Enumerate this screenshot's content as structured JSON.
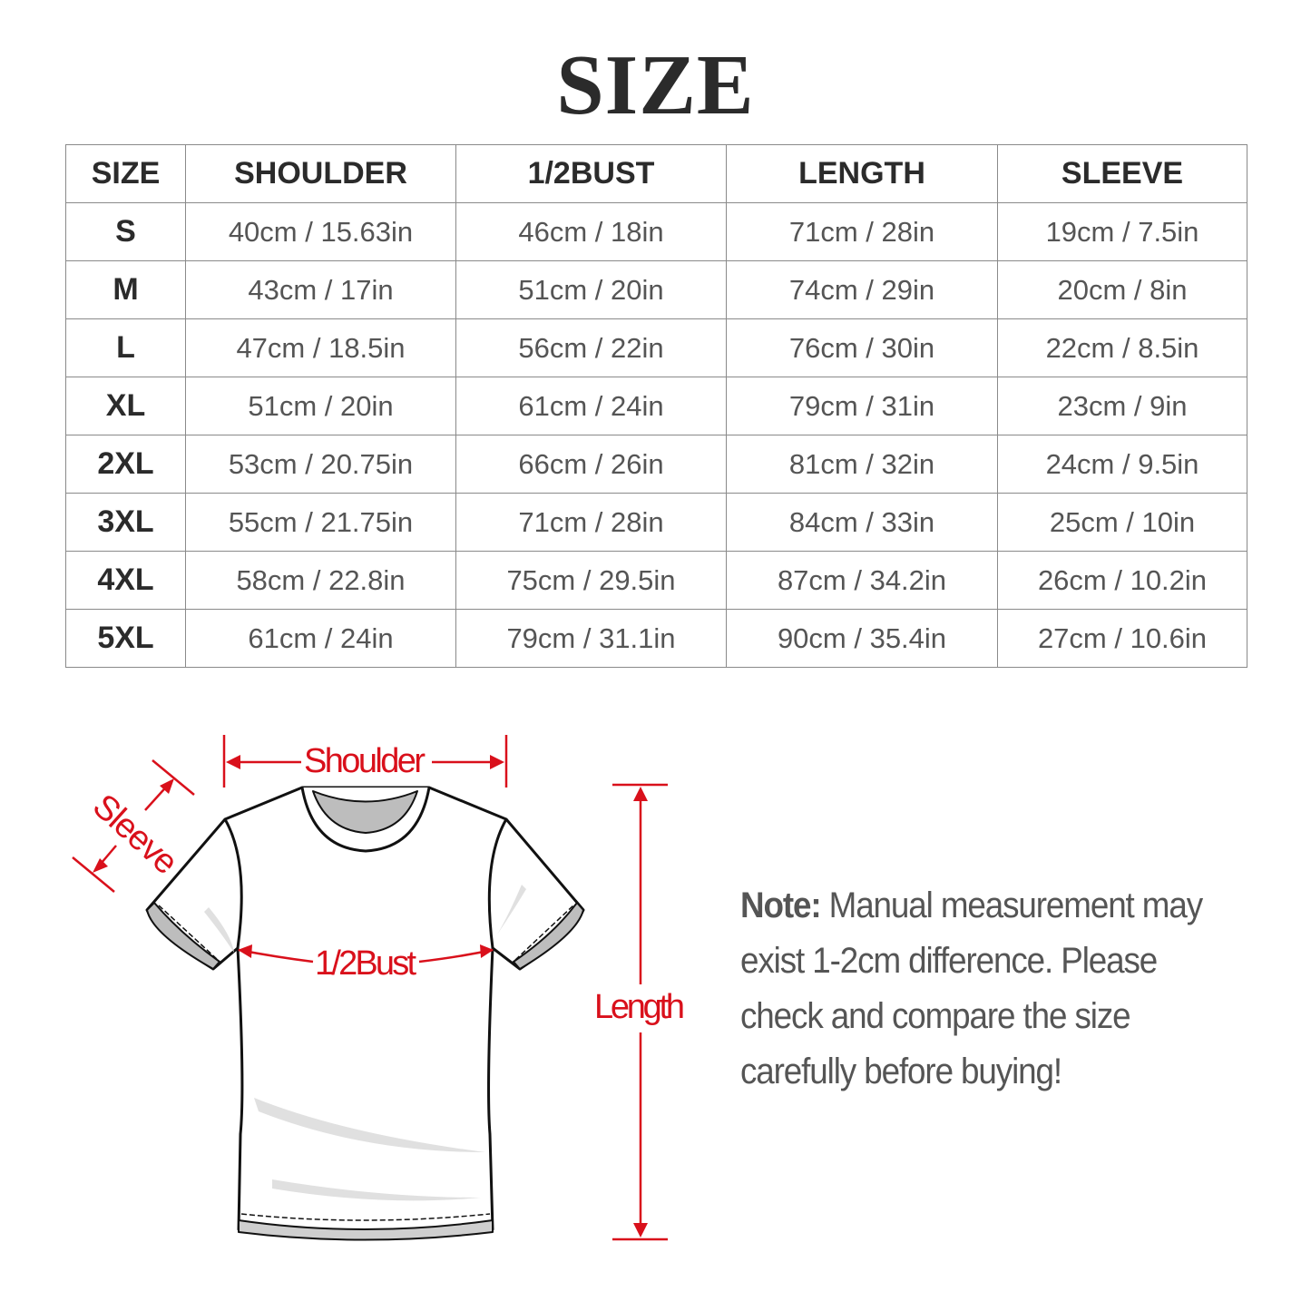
{
  "title": "SIZE",
  "table": {
    "headers": [
      "SIZE",
      "SHOULDER",
      "1/2BUST",
      "LENGTH",
      "SLEEVE"
    ],
    "rows": [
      [
        "S",
        "40cm / 15.63in",
        "46cm / 18in",
        "71cm / 28in",
        "19cm / 7.5in"
      ],
      [
        "M",
        "43cm / 17in",
        "51cm / 20in",
        "74cm / 29in",
        "20cm / 8in"
      ],
      [
        "L",
        "47cm / 18.5in",
        "56cm / 22in",
        "76cm / 30in",
        "22cm / 8.5in"
      ],
      [
        "XL",
        "51cm / 20in",
        "61cm / 24in",
        "79cm / 31in",
        "23cm / 9in"
      ],
      [
        "2XL",
        "53cm / 20.75in",
        "66cm / 26in",
        "81cm / 32in",
        "24cm / 9.5in"
      ],
      [
        "3XL",
        "55cm / 21.75in",
        "71cm / 28in",
        "84cm / 33in",
        "25cm / 10in"
      ],
      [
        "4XL",
        "58cm / 22.8in",
        "75cm / 29.5in",
        "87cm / 34.2in",
        "26cm / 10.2in"
      ],
      [
        "5XL",
        "61cm / 24in",
        "79cm / 31.1in",
        "90cm / 35.4in",
        "27cm / 10.6in"
      ]
    ]
  },
  "diagram": {
    "shoulder_label": "Shoulder",
    "sleeve_label": "Sleeve",
    "bust_label": "1/2Bust",
    "length_label": "Length",
    "accent_color": "#d9101b"
  },
  "note": {
    "label": "Note:",
    "text": " Manual measurement may exist 1-2cm difference. Please check and compare the size carefully before buying!"
  }
}
